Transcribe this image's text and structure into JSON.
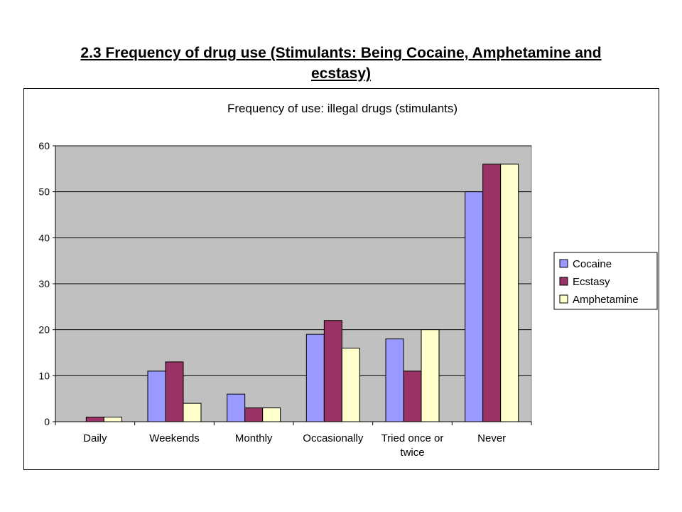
{
  "page": {
    "title_line1": "2.3 Frequency of drug use (Stimulants: Being Cocaine, Amphetamine and",
    "title_line2": "ecstasy)"
  },
  "chart_data": {
    "type": "bar",
    "title": "Frequency of use: illegal drugs (stimulants)",
    "categories": [
      "Daily",
      "Weekends",
      "Monthly",
      "Occasionally",
      "Tried once or twice",
      "Never"
    ],
    "category_lines": [
      [
        "Daily"
      ],
      [
        "Weekends"
      ],
      [
        "Monthly"
      ],
      [
        "Occasionally"
      ],
      [
        "Tried once or",
        "twice"
      ],
      [
        "Never"
      ]
    ],
    "series": [
      {
        "name": "Cocaine",
        "color": "#9999FF",
        "values": [
          0,
          11,
          6,
          19,
          18,
          50
        ]
      },
      {
        "name": "Ecstasy",
        "color": "#993366",
        "values": [
          1,
          13,
          3,
          22,
          11,
          56
        ]
      },
      {
        "name": "Amphetamine",
        "color": "#FFFFCC",
        "values": [
          1,
          4,
          3,
          16,
          20,
          56
        ]
      }
    ],
    "ylim": [
      0,
      60
    ],
    "yticks": [
      0,
      10,
      20,
      30,
      40,
      50,
      60
    ],
    "xlabel": "",
    "ylabel": "",
    "plot_background": "#C0C0C0",
    "grid": true,
    "legend": "right"
  }
}
